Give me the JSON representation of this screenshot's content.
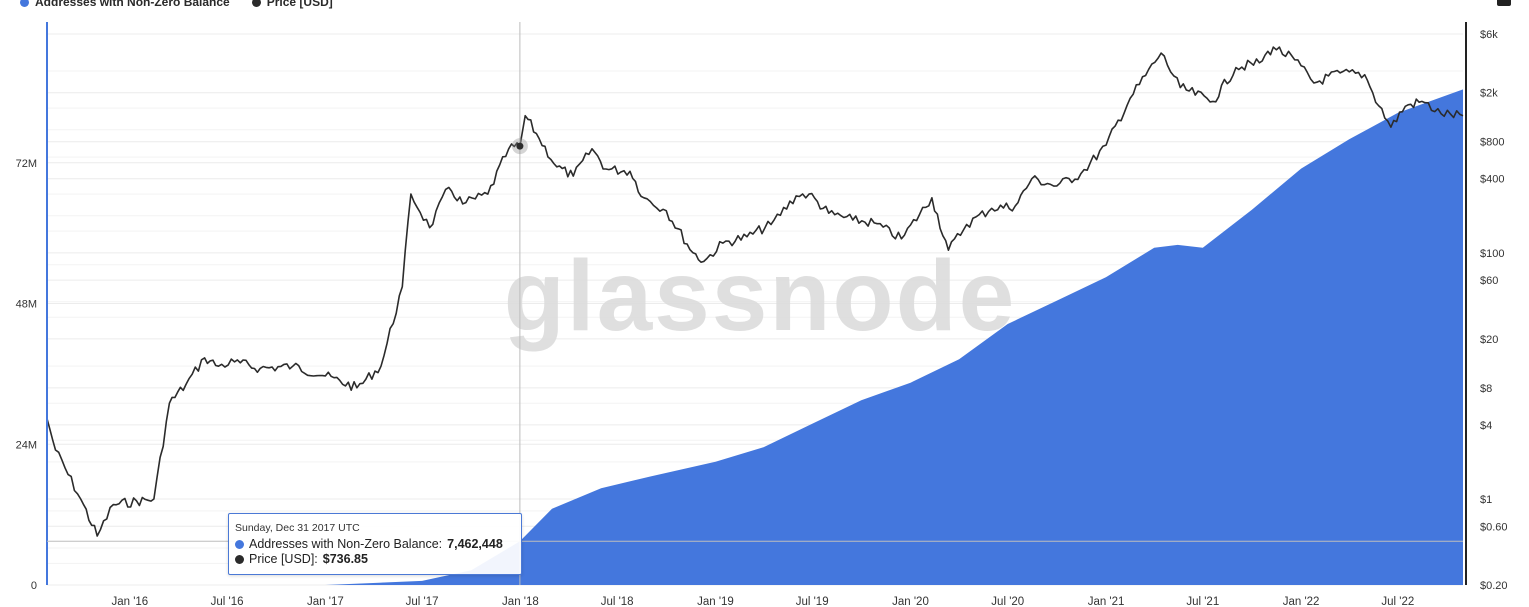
{
  "legend": {
    "series1": "Addresses with Non-Zero Balance",
    "series2": "Price [USD]"
  },
  "watermark": "glassnode",
  "colors": {
    "addresses": "#4477dd",
    "price": "#2b2b2b",
    "grid": "#ececec"
  },
  "tooltip": {
    "date": "Sunday, Dec 31 2017 UTC",
    "addresses_label": "Addresses with Non-Zero Balance:",
    "addresses_value": "7,462,448",
    "price_label": "Price [USD]:",
    "price_value": "$736.85"
  },
  "chart_data": {
    "type": "area",
    "x_ticks": [
      "Jan '16",
      "Jul '16",
      "Jan '17",
      "Jul '17",
      "Jan '18",
      "Jul '18",
      "Jan '19",
      "Jul '19",
      "Jan '20",
      "Jul '20",
      "Jan '21",
      "Jul '21",
      "Jan '22",
      "Jul '22"
    ],
    "y_left_ticks": [
      "0",
      "24M",
      "48M",
      "72M"
    ],
    "y_left_range": [
      0,
      96000000
    ],
    "y_right_ticks": [
      "$6k",
      "$2k",
      "$800",
      "$400",
      "$100",
      "$60",
      "$20",
      "$8",
      "$4",
      "$1",
      "$0.60",
      "$0.20"
    ],
    "y_right_scale": "log",
    "y_right_range": [
      0.2,
      6000
    ],
    "grid": true,
    "series": [
      {
        "name": "Addresses with Non-Zero Balance",
        "axis": "left",
        "type": "area",
        "x": [
          "2015-07-30",
          "2016-01-01",
          "2016-07-01",
          "2017-01-01",
          "2017-07-01",
          "2017-10-01",
          "2017-12-31",
          "2018-03-01",
          "2018-06-01",
          "2018-09-01",
          "2019-01-01",
          "2019-04-01",
          "2019-07-01",
          "2019-10-01",
          "2020-01-01",
          "2020-04-01",
          "2020-07-01",
          "2020-10-01",
          "2021-01-01",
          "2021-04-01",
          "2021-05-15",
          "2021-07-01",
          "2021-10-01",
          "2022-01-01",
          "2022-04-01",
          "2022-07-01",
          "2022-10-31"
        ],
        "y": [
          0,
          0,
          0,
          0,
          700000,
          2500000,
          7462448,
          13000000,
          16500000,
          18500000,
          21000000,
          23500000,
          27500000,
          31500000,
          34500000,
          38500000,
          44500000,
          48500000,
          52500000,
          57500000,
          58000000,
          57500000,
          64000000,
          71000000,
          76000000,
          80500000,
          84500000
        ]
      },
      {
        "name": "Price [USD]",
        "axis": "right",
        "type": "line",
        "x": [
          "2015-07-30",
          "2015-08-15",
          "2015-10-01",
          "2015-11-01",
          "2015-12-01",
          "2016-02-15",
          "2016-03-15",
          "2016-04-15",
          "2016-05-20",
          "2016-06-15",
          "2016-07-15",
          "2016-09-01",
          "2016-11-01",
          "2017-01-01",
          "2017-03-01",
          "2017-04-15",
          "2017-05-25",
          "2017-06-10",
          "2017-07-15",
          "2017-08-20",
          "2017-09-15",
          "2017-11-01",
          "2017-12-10",
          "2017-12-31",
          "2018-01-10",
          "2018-02-05",
          "2018-03-10",
          "2018-04-10",
          "2018-05-15",
          "2018-06-10",
          "2018-07-25",
          "2018-08-20",
          "2018-10-01",
          "2018-11-20",
          "2018-12-10",
          "2019-01-15",
          "2019-03-01",
          "2019-04-15",
          "2019-06-01",
          "2019-06-25",
          "2019-08-01",
          "2019-09-15",
          "2019-10-25",
          "2019-12-15",
          "2020-02-10",
          "2020-03-12",
          "2020-04-15",
          "2020-06-01",
          "2020-07-15",
          "2020-08-15",
          "2020-10-01",
          "2020-11-15",
          "2021-01-01",
          "2021-02-15",
          "2021-04-14",
          "2021-05-20",
          "2021-07-20",
          "2021-09-01",
          "2021-10-15",
          "2021-11-10",
          "2021-12-20",
          "2022-01-25",
          "2022-03-15",
          "2022-04-30",
          "2022-05-15",
          "2022-06-18",
          "2022-07-15",
          "2022-08-15",
          "2022-09-20",
          "2022-10-31"
        ],
        "y": [
          4.5,
          2.5,
          1.0,
          0.5,
          0.9,
          1.0,
          6.0,
          8.5,
          14.0,
          12.0,
          13.0,
          11.5,
          12.0,
          10.0,
          8.0,
          12.0,
          53.0,
          300.0,
          160.0,
          340.0,
          250.0,
          300.0,
          700.0,
          736.85,
          1300.0,
          850.0,
          500.0,
          420.0,
          700.0,
          480.0,
          460.0,
          280.0,
          220.0,
          100.0,
          85.0,
          120.0,
          135.0,
          170.0,
          290.0,
          300.0,
          210.0,
          185.0,
          175.0,
          130.0,
          280.0,
          105.0,
          170.0,
          230.0,
          240.0,
          400.0,
          350.0,
          440.0,
          750.0,
          1800.0,
          4200.0,
          2200.0,
          1700.0,
          3200.0,
          3500.0,
          4700.0,
          3700.0,
          2400.0,
          2900.0,
          2800.0,
          2000.0,
          1050.0,
          1550.0,
          1700.0,
          1350.0,
          1300.0
        ]
      }
    ]
  }
}
